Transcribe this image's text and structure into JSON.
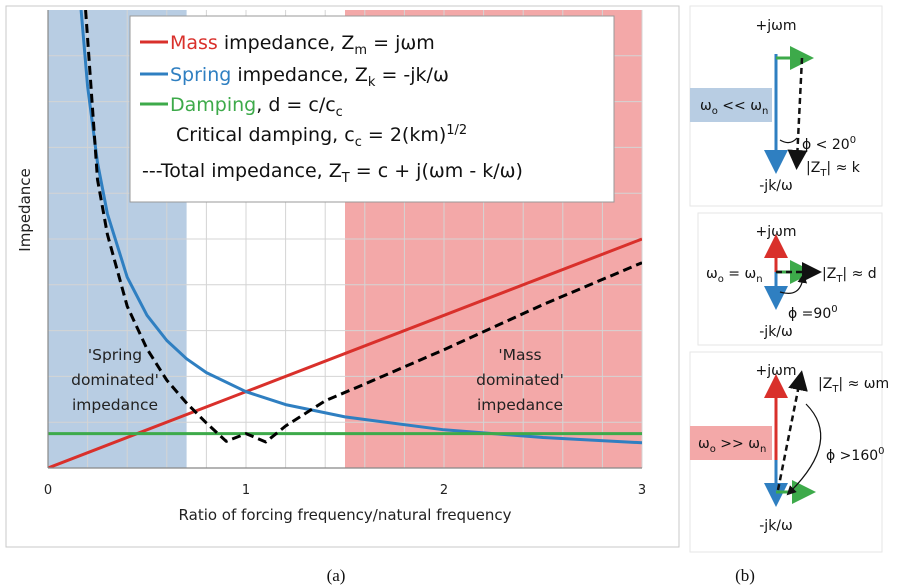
{
  "chart_data": {
    "type": "line",
    "xlabel": "Ratio of forcing frequency/natural frequency",
    "ylabel": "Impedance",
    "xlim": [
      0,
      3
    ],
    "ylim": [
      0,
      6
    ],
    "grid": true,
    "x_ticks": [
      0,
      1,
      2,
      3
    ],
    "x_tick_labels": [
      "0",
      "1",
      "2",
      "3"
    ],
    "legend_placement": "top-right",
    "legend": {
      "mass": {
        "colored": "Mass",
        "rest": " impedance, Z",
        "sub": "m",
        "tail": " = jωm",
        "color": "#d9302b"
      },
      "spring": {
        "colored": "Spring",
        "rest": " impedance, Z",
        "sub": "k",
        "tail": " = -jk/ω",
        "color": "#2f7fc1"
      },
      "damping": {
        "colored": "Damping",
        "rest": ", d = c/c",
        "sub": "c",
        "color": "#3daa4a"
      },
      "critical": {
        "text": "Critical damping, c",
        "sub": "c",
        "tail": " = 2(km)",
        "sup": "1/2"
      },
      "total": {
        "text": "---Total impedance, Z",
        "sub": "T",
        "tail": " = c + j(ωm - k/ω)"
      }
    },
    "series": [
      {
        "name": "Mass impedance",
        "color": "#d9302b",
        "x": [
          0,
          3
        ],
        "y": [
          0,
          3
        ]
      },
      {
        "name": "Spring impedance",
        "color": "#2f7fc1",
        "x": [
          0.167,
          0.2,
          0.25,
          0.3,
          0.4,
          0.5,
          0.6,
          0.7,
          0.8,
          1,
          1.2,
          1.5,
          2,
          2.5,
          3
        ],
        "y": [
          6,
          5,
          4,
          3.33,
          2.5,
          2,
          1.67,
          1.43,
          1.25,
          1,
          0.83,
          0.67,
          0.5,
          0.4,
          0.33
        ]
      },
      {
        "name": "Damping",
        "color": "#3daa4a",
        "x": [
          0,
          3
        ],
        "y": [
          0.45,
          0.45
        ]
      },
      {
        "name": "Total impedance",
        "color": "#000000",
        "x": [
          0.19,
          0.25,
          0.3,
          0.4,
          0.5,
          0.6,
          0.7,
          0.8,
          0.9,
          1,
          1.1,
          1.2,
          1.4,
          1.6,
          2,
          2.5,
          3
        ],
        "y": [
          6,
          3.78,
          3.06,
          2.12,
          1.56,
          1.15,
          0.85,
          0.59,
          0.35,
          0.45,
          0.34,
          0.55,
          0.88,
          1.1,
          1.55,
          2.14,
          2.69
        ]
      }
    ],
    "regions": [
      {
        "name": "Spring dominated",
        "x0": 0,
        "x1": 0.7,
        "color": "#b8cde3",
        "label": [
          "'Spring",
          "dominated'",
          "impedance"
        ]
      },
      {
        "name": "Mass dominated",
        "x0": 1.5,
        "x1": 3,
        "color": "#f3a8a8",
        "label": [
          "'Mass",
          "dominated'",
          "impedance"
        ]
      }
    ]
  },
  "phasors": {
    "p1": {
      "top": "+jωm",
      "bottom": "-jk/ω",
      "cond_a": "ω",
      "cond_a_sub": "o",
      "cond_rel": " << ω",
      "cond_b_sub": "n",
      "phi": "ϕ < 20",
      "phi_sup": "0",
      "zt": "|Z",
      "zt_sub": "T",
      "zt_tail": "| ≈ k"
    },
    "p2": {
      "top": "+jωm",
      "bottom": "-jk/ω",
      "cond_a": "ω",
      "cond_a_sub": "o",
      "cond_rel": " = ω",
      "cond_b_sub": "n",
      "phi": "ϕ =90",
      "phi_sup": "0",
      "zt": "|Z",
      "zt_sub": "T",
      "zt_tail": "| ≈ d"
    },
    "p3": {
      "top": "+jωm",
      "bottom": "-jk/ω",
      "cond_a": "ω",
      "cond_a_sub": "o",
      "cond_rel": " >> ω",
      "cond_b_sub": "n",
      "phi": "ϕ >160",
      "phi_sup": "0",
      "zt": "|Z",
      "zt_sub": "T",
      "zt_tail": "| ≈ ωm"
    }
  },
  "captions": {
    "a": "(a)",
    "b": "(b)"
  },
  "colors": {
    "mass": "#d9302b",
    "spring": "#2f7fc1",
    "damping": "#3daa4a",
    "total": "#000000",
    "spring_region": "#b8cde3",
    "mass_region": "#f3a8a8"
  }
}
